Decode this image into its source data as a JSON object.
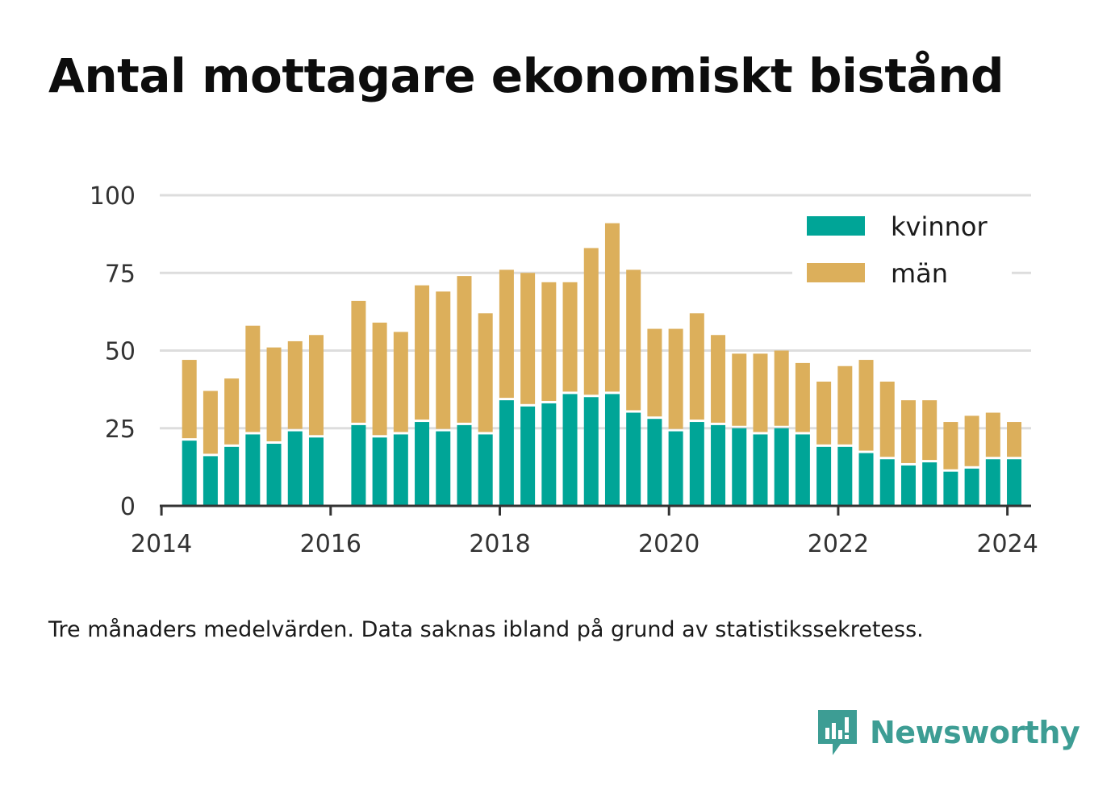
{
  "title": "Antal mottagare ekonomiskt bistånd",
  "caption": "Tre månaders medelvärden. Data saknas ibland på grund av statistikssekretess.",
  "brand": {
    "name": "Newsworthy",
    "icon": "newsworthy-logo-icon",
    "color": "#3d9d94"
  },
  "chart_data": {
    "type": "bar",
    "stacked": true,
    "xlabel": "",
    "ylabel": "",
    "ylim": [
      0,
      100
    ],
    "xlim": [
      2013.98,
      2024.28
    ],
    "yticks": [
      0,
      25,
      50,
      75,
      100
    ],
    "ytick_labels": [
      "0",
      "25",
      "50",
      "75",
      "100"
    ],
    "xticks": [
      2014,
      2016,
      2018,
      2020,
      2022,
      2024
    ],
    "xtick_labels": [
      "2014",
      "2016",
      "2018",
      "2020",
      "2022",
      "2024"
    ],
    "grid": true,
    "legend_position": "top-right",
    "x": [
      2014.33,
      2014.58,
      2014.83,
      2015.08,
      2015.33,
      2015.58,
      2015.83,
      2016.33,
      2016.58,
      2016.83,
      2017.08,
      2017.33,
      2017.58,
      2017.83,
      2018.08,
      2018.33,
      2018.58,
      2018.83,
      2019.08,
      2019.33,
      2019.58,
      2019.83,
      2020.08,
      2020.33,
      2020.58,
      2020.83,
      2021.08,
      2021.33,
      2021.58,
      2021.83,
      2022.08,
      2022.33,
      2022.58,
      2022.83,
      2023.08,
      2023.33,
      2023.58,
      2023.83,
      2024.08
    ],
    "series": [
      {
        "name": "kvinnor",
        "color": "#00a597",
        "values": [
          21,
          16,
          19,
          23,
          20,
          24,
          22,
          26,
          22,
          23,
          27,
          24,
          26,
          23,
          34,
          32,
          33,
          36,
          35,
          36,
          30,
          28,
          24,
          27,
          26,
          25,
          23,
          25,
          23,
          19,
          19,
          17,
          15,
          13,
          14,
          11,
          12,
          15,
          15
        ]
      },
      {
        "name": "män",
        "color": "#dcaf5b",
        "values": [
          26,
          21,
          22,
          35,
          31,
          29,
          33,
          40,
          37,
          33,
          44,
          45,
          48,
          39,
          42,
          43,
          39,
          36,
          48,
          55,
          46,
          29,
          33,
          35,
          29,
          24,
          26,
          25,
          23,
          21,
          26,
          30,
          25,
          21,
          20,
          16,
          17,
          15,
          12
        ]
      }
    ]
  }
}
